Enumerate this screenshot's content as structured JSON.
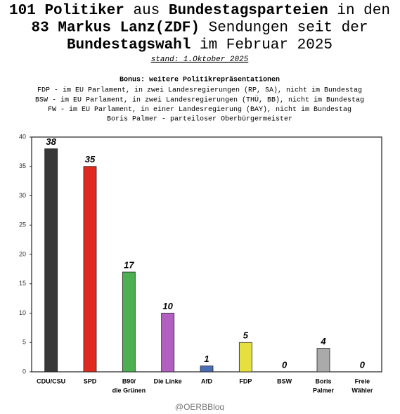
{
  "chart_data": {
    "type": "bar",
    "title": [
      [
        {
          "text": "101 Politiker",
          "bold": true
        },
        {
          "text": " aus "
        },
        {
          "text": "Bundestagsparteien",
          "bold": true
        },
        {
          "text": " in den"
        }
      ],
      [
        {
          "text": "83 Markus Lanz(ZDF)",
          "bold": true
        },
        {
          "text": " Sendungen seit der"
        }
      ],
      [
        {
          "text": "Bundestagswahl",
          "bold": true
        },
        {
          "text": " im Februar 2025"
        }
      ]
    ],
    "subtitle": "stand: 1.Oktober 2025",
    "notes_title": "Bonus: weitere Politikrepräsentationen",
    "notes": [
      "FDP - im EU Parlament, in zwei Landesregierungen (RP, SA), nicht im Bundestag",
      "BSW - im EU Parlament, in zwei Landesregierungen (THÜ, BB), nicht im Bundestag",
      "FW - im EU Parlament, in einer Landesregierung (BAY), nicht im Bundestag",
      "Boris Palmer - parteiloser Oberbürgermeister"
    ],
    "categories": [
      [
        "CDU/CSU"
      ],
      [
        "SPD"
      ],
      [
        "B90/",
        "die Grünen"
      ],
      [
        "Die Linke"
      ],
      [
        "AfD"
      ],
      [
        "FDP"
      ],
      [
        "BSW"
      ],
      [
        "Boris",
        "Palmer"
      ],
      [
        "Freie",
        "Wähler"
      ]
    ],
    "values": [
      38,
      35,
      17,
      10,
      1,
      5,
      0,
      4,
      0
    ],
    "colors": [
      "#383838",
      "#e0291f",
      "#4caf50",
      "#b35fc2",
      "#4a6db3",
      "#e6e03e",
      "#999999",
      "#aaaaaa",
      "#999999"
    ],
    "ylim": [
      0,
      40
    ],
    "yticks": [
      0,
      5,
      10,
      15,
      20,
      25,
      30,
      35,
      40
    ],
    "watermark": "@OERBBlog"
  }
}
